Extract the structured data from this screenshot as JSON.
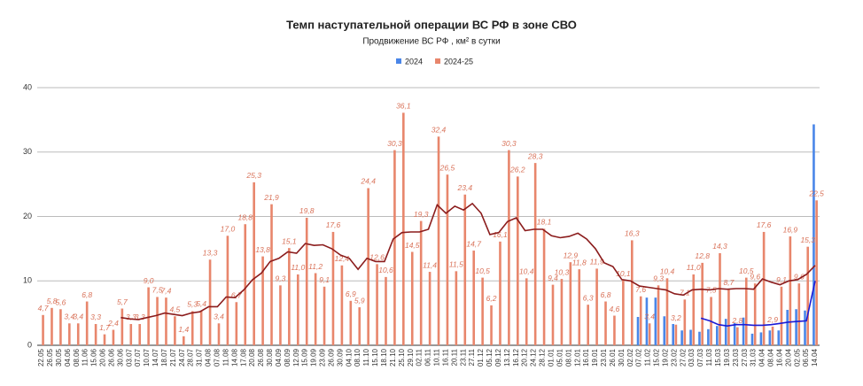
{
  "chart_data": {
    "type": "bar",
    "title": "Темп наступательной операции ВС РФ в зоне СВО",
    "subtitle": "Продвижение ВС РФ , км² в сутки",
    "categories": [
      "22.05",
      "26.05",
      "30.05",
      "04.06",
      "08.06",
      "11.06",
      "15.06",
      "20.06",
      "26.06",
      "30.06",
      "03.07",
      "07.07",
      "10.07",
      "14.07",
      "18.07",
      "21.07",
      "24.07",
      "28.07",
      "31.07",
      "04.08",
      "07.08",
      "11.08",
      "14.08",
      "17.08",
      "20.08",
      "26.08",
      "30.08",
      "04.09",
      "08.09",
      "12.09",
      "15.09",
      "19.09",
      "23.09",
      "26.09",
      "30.09",
      "04.10",
      "08.10",
      "11.10",
      "15.10",
      "18.10",
      "21.10",
      "25.10",
      "29.10",
      "02.11",
      "06.11",
      "10.11",
      "16.11",
      "20.11",
      "23.11",
      "27.11",
      "01.12",
      "05.12",
      "09.12",
      "13.12",
      "16.12",
      "20.12",
      "24.12",
      "28.12",
      "01.01",
      "05.01",
      "08.01",
      "12.01",
      "16.01",
      "19.01",
      "23.01",
      "26.01",
      "30.01",
      "02.02",
      "07.02",
      "11.02",
      "15.02",
      "19.02",
      "23.02",
      "27.02",
      "03.03",
      "07.03",
      "11.03",
      "15.03",
      "19.03",
      "23.03",
      "27.03",
      "31.03",
      "04.04",
      "08.04",
      "16.04",
      "20.04",
      "02.05",
      "06.05",
      "14.04"
    ],
    "series": [
      {
        "name": "2024",
        "color": "#4a86e8",
        "values": [
          null,
          null,
          null,
          null,
          null,
          null,
          null,
          null,
          null,
          null,
          null,
          null,
          null,
          null,
          null,
          null,
          null,
          null,
          null,
          null,
          null,
          null,
          null,
          null,
          null,
          null,
          null,
          null,
          null,
          null,
          null,
          null,
          null,
          null,
          null,
          null,
          null,
          null,
          null,
          null,
          null,
          null,
          null,
          null,
          null,
          null,
          null,
          null,
          null,
          null,
          null,
          null,
          null,
          null,
          null,
          null,
          null,
          null,
          null,
          null,
          null,
          null,
          null,
          null,
          null,
          null,
          null,
          null,
          4.4,
          7.4,
          7.4,
          4.5,
          3.3,
          2.3,
          2.4,
          2.1,
          2.5,
          3.0,
          4.1,
          3.5,
          4.3,
          1.8,
          2.0,
          2.3,
          2.3,
          5.5,
          5.6,
          5.4,
          34.3
        ]
      },
      {
        "name": "2024-25",
        "color": "#e8866c",
        "values": [
          4.7,
          5.8,
          5.6,
          3.4,
          3.4,
          6.8,
          3.3,
          1.7,
          2.4,
          5.7,
          3.3,
          3.3,
          9.0,
          7.5,
          7.4,
          4.5,
          1.4,
          5.3,
          5.4,
          13.3,
          3.4,
          17.0,
          6.7,
          18.8,
          25.3,
          13.8,
          21.9,
          9.3,
          15.1,
          11.0,
          19.8,
          11.2,
          9.1,
          17.6,
          12.4,
          6.9,
          5.9,
          24.4,
          12.6,
          10.6,
          30.3,
          36.1,
          14.5,
          19.3,
          11.4,
          32.4,
          26.5,
          11.5,
          23.4,
          14.7,
          10.5,
          6.2,
          16.1,
          30.3,
          26.2,
          10.4,
          28.3,
          18.1,
          9.4,
          10.3,
          12.9,
          11.8,
          6.3,
          11.9,
          6.8,
          4.6,
          10.1,
          16.3,
          7.6,
          3.4,
          9.3,
          10.4,
          3.2,
          7.1,
          11.0,
          12.8,
          7.5,
          14.3,
          8.7,
          2.8,
          10.5,
          9.6,
          17.6,
          2.9,
          9.1,
          16.9,
          9.6,
          15.3,
          22.5
        ],
        "value_labels": [
          "4,7",
          "5,8",
          "5,6",
          "3,4",
          "3,4",
          "6,8",
          "3,3",
          "1,7",
          "2,4",
          "5,7",
          "3,3",
          "3,3",
          "9,0",
          "7,5",
          "7,4",
          "4,5",
          "1,4",
          "5,3",
          "5,4",
          "13,3",
          "3,4",
          "17,0",
          "6,7",
          "18,8",
          "25,3",
          "13,8",
          "21,9",
          "9,3",
          "15,1",
          "11,0",
          "19,8",
          "11,2",
          "9,1",
          "17,6",
          "12,4",
          "6,9",
          "5,9",
          "24,4",
          "12,6",
          "10,6",
          "30,3",
          "36,1",
          "14,5",
          "19,3",
          "11,4",
          "32,4",
          "26,5",
          "11,5",
          "23,4",
          "14,7",
          "10,5",
          "6,2",
          "16,1",
          "30,3",
          "26,2",
          "10,4",
          "28,3",
          "18,1",
          "9,4",
          "10,3",
          "12,9",
          "11,8",
          "6,3",
          "11,9",
          "6,8",
          "4,6",
          "10,1",
          "16,3",
          "7,6",
          "3,4",
          "9,3",
          "10,4",
          "3,2",
          "7,1",
          "11,0",
          "12,8",
          "7,5",
          "14,3",
          "8,7",
          "2,8",
          "10,5",
          "9,6",
          "17,6",
          "2,9",
          "9,1",
          "16,9",
          "9,6",
          "15,3",
          "22,5"
        ]
      }
    ],
    "trend_lines": [
      {
        "color": "#8b1c1c",
        "values": [
          null,
          null,
          null,
          null,
          null,
          null,
          null,
          null,
          null,
          4.3,
          4.1,
          4.0,
          4.3,
          4.6,
          5.0,
          4.8,
          4.6,
          5.0,
          5.2,
          6.0,
          6.0,
          7.5,
          7.4,
          8.6,
          10.2,
          11.2,
          13.0,
          13.5,
          14.5,
          14.3,
          15.8,
          15.5,
          15.6,
          15.0,
          14.0,
          13.5,
          11.8,
          13.5,
          13.0,
          13.0,
          16.5,
          17.5,
          17.6,
          17.6,
          18.0,
          21.8,
          20.5,
          21.6,
          21.0,
          22.0,
          20.5,
          17.2,
          17.5,
          19.2,
          19.8,
          17.8,
          18.0,
          18.0,
          17.0,
          16.7,
          16.9,
          17.4,
          16.5,
          15.0,
          12.8,
          12.2,
          10.2,
          10.0,
          9.2,
          9.0,
          8.8,
          8.6,
          8.0,
          7.8,
          8.6,
          8.7,
          8.6,
          8.8,
          8.7,
          8.8,
          8.8,
          8.7,
          10.3,
          9.8,
          9.4,
          10.0,
          10.2,
          11.0,
          12.4
        ]
      },
      {
        "color": "#1a1ad6",
        "values": [
          null,
          null,
          null,
          null,
          null,
          null,
          null,
          null,
          null,
          null,
          null,
          null,
          null,
          null,
          null,
          null,
          null,
          null,
          null,
          null,
          null,
          null,
          null,
          null,
          null,
          null,
          null,
          null,
          null,
          null,
          null,
          null,
          null,
          null,
          null,
          null,
          null,
          null,
          null,
          null,
          null,
          null,
          null,
          null,
          null,
          null,
          null,
          null,
          null,
          null,
          null,
          null,
          null,
          null,
          null,
          null,
          null,
          null,
          null,
          null,
          null,
          null,
          null,
          null,
          null,
          null,
          null,
          null,
          null,
          null,
          null,
          null,
          null,
          null,
          null,
          4.2,
          3.8,
          3.2,
          3.0,
          3.2,
          3.2,
          3.1,
          3.1,
          3.2,
          3.4,
          3.6,
          3.7,
          3.8,
          10.0
        ]
      }
    ],
    "ylim": [
      0,
      40
    ],
    "yticks": [
      0,
      10,
      20,
      30,
      40
    ],
    "grid": true,
    "legend": "top"
  }
}
